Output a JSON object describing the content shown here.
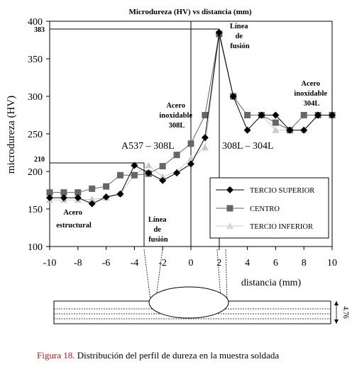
{
  "chart_data": {
    "type": "line",
    "title": "Microdureza (HV) vs distancia (mm)",
    "xlabel": "distancia (mm)",
    "ylabel": "microdureza (HV)",
    "xlim": [
      -10,
      10
    ],
    "ylim": [
      100,
      400
    ],
    "xticks": [
      -10,
      -8,
      -6,
      -4,
      -2,
      0,
      2,
      4,
      6,
      8,
      10
    ],
    "yticks": [
      100,
      150,
      200,
      250,
      300,
      350,
      400
    ],
    "grid": false,
    "legend_position": "bottom-right",
    "series": [
      {
        "name": "TERCIO SUPERIOR",
        "color": "#000000",
        "marker": "diamond",
        "x": [
          -10,
          -9,
          -8,
          -7,
          -6,
          -5,
          -4,
          -3,
          -2,
          -1,
          0,
          1,
          2,
          3,
          4,
          5,
          6,
          7,
          8,
          9,
          10
        ],
        "y": [
          165,
          165,
          165,
          157,
          166,
          170,
          208,
          198,
          188,
          198,
          210,
          245,
          385,
          300,
          255,
          275,
          275,
          255,
          255,
          275,
          275
        ]
      },
      {
        "name": "CENTRO",
        "color": "#666666",
        "marker": "square",
        "x": [
          -10,
          -9,
          -8,
          -7,
          -6,
          -5,
          -4,
          -3,
          -2,
          -1,
          0,
          1,
          2,
          3,
          4,
          5,
          6,
          7,
          8,
          9,
          10
        ],
        "y": [
          172,
          172,
          172,
          177,
          180,
          195,
          195,
          197,
          207,
          222,
          237,
          275,
          383,
          300,
          275,
          275,
          265,
          255,
          275,
          275,
          275
        ]
      },
      {
        "name": "TERCIO INFERIOR",
        "color": "#c8c8c8",
        "marker": "triangle",
        "x": [
          -10,
          -9,
          -8,
          -7,
          -6,
          -5,
          -4,
          -3,
          -2,
          -1,
          0,
          1,
          2,
          3,
          4,
          5,
          6,
          7,
          8,
          9,
          10
        ],
        "y": [
          162,
          162,
          162,
          163,
          165,
          170,
          195,
          208,
          193,
          200,
          217,
          232,
          383,
          300,
          275,
          275,
          255,
          255,
          255,
          275,
          275
        ]
      }
    ],
    "reference_labels": {
      "y_383": "383",
      "y_210": "210"
    },
    "annotations": {
      "acero_estructural": [
        "Acero",
        "estructural"
      ],
      "linea_fusion_left": [
        "Línea",
        "de",
        "fusión"
      ],
      "linea_fusion_right": [
        "Línea",
        "de",
        "fusión"
      ],
      "acero_inoxidable_308l": [
        "Acero",
        "inoxidable",
        "308L"
      ],
      "acero_inoxidable_304l": [
        "Acero",
        "inoxidable",
        "304L"
      ],
      "region_left": "A537 – 308L",
      "region_right": "308L – 304L"
    },
    "thickness_label": "4.76"
  },
  "caption": {
    "figure_label": "Figura 18.",
    "text": " Distribución del perfil de dureza en la muestra soldada"
  }
}
